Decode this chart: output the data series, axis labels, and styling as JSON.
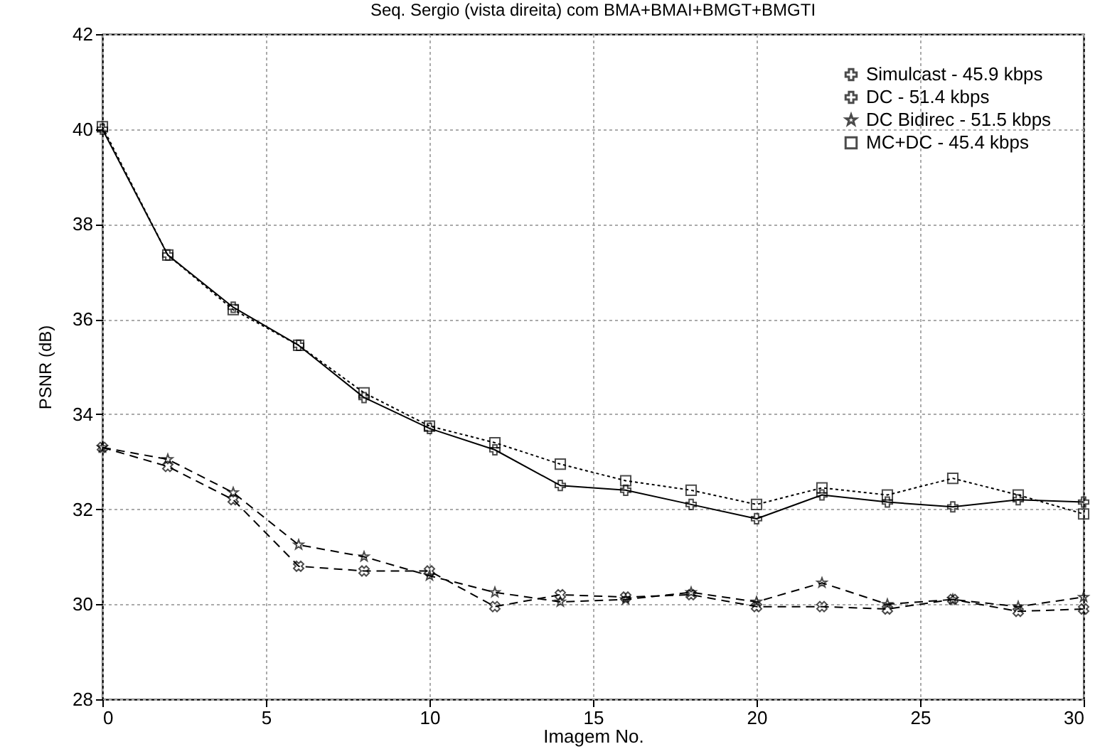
{
  "chart_data": {
    "type": "line",
    "title": "Seq. Sergio (vista direita) com BMA+BMAI+BMGT+BMGTI",
    "xlabel": "Imagem No.",
    "ylabel": "PSNR (dB)",
    "x": [
      0,
      2,
      4,
      6,
      8,
      10,
      12,
      14,
      16,
      18,
      20,
      22,
      24,
      26,
      28,
      30
    ],
    "xlim": [
      0,
      30
    ],
    "xticks": [
      0,
      5,
      10,
      15,
      20,
      25,
      30
    ],
    "ylim": [
      28,
      42
    ],
    "yticks": [
      28,
      30,
      32,
      34,
      36,
      38,
      40,
      42
    ],
    "grid": true,
    "legend": "top right",
    "series": [
      {
        "name": "Simulcast - 45.9 kbps",
        "color": "#000000",
        "marker": "plus",
        "line_style": "solid",
        "values": [
          40.0,
          37.35,
          36.25,
          35.45,
          34.35,
          33.7,
          33.25,
          32.5,
          32.4,
          32.1,
          31.8,
          32.3,
          32.15,
          32.05,
          32.2,
          32.15
        ]
      },
      {
        "name": "DC - 51.4 kbps",
        "color": "#000000",
        "marker": "cross",
        "line_style": "dashed",
        "values": [
          33.3,
          32.9,
          32.2,
          30.8,
          30.7,
          30.7,
          29.95,
          30.2,
          30.15,
          30.2,
          29.95,
          29.95,
          29.9,
          30.1,
          29.85,
          29.9
        ]
      },
      {
        "name": "DC Bidirec - 51.5 kbps",
        "color": "#000000",
        "marker": "star",
        "line_style": "dashed",
        "values": [
          33.3,
          33.05,
          32.35,
          31.25,
          31.0,
          30.6,
          30.25,
          30.05,
          30.1,
          30.25,
          30.05,
          30.45,
          30.0,
          30.1,
          29.95,
          30.15
        ]
      },
      {
        "name": "MC+DC - 45.4 kbps",
        "color": "#000000",
        "marker": "square",
        "line_style": "dotted",
        "values": [
          40.05,
          37.35,
          36.2,
          35.45,
          34.45,
          33.75,
          33.4,
          32.95,
          32.6,
          32.4,
          32.1,
          32.45,
          32.3,
          32.65,
          32.3,
          31.9
        ]
      }
    ]
  }
}
